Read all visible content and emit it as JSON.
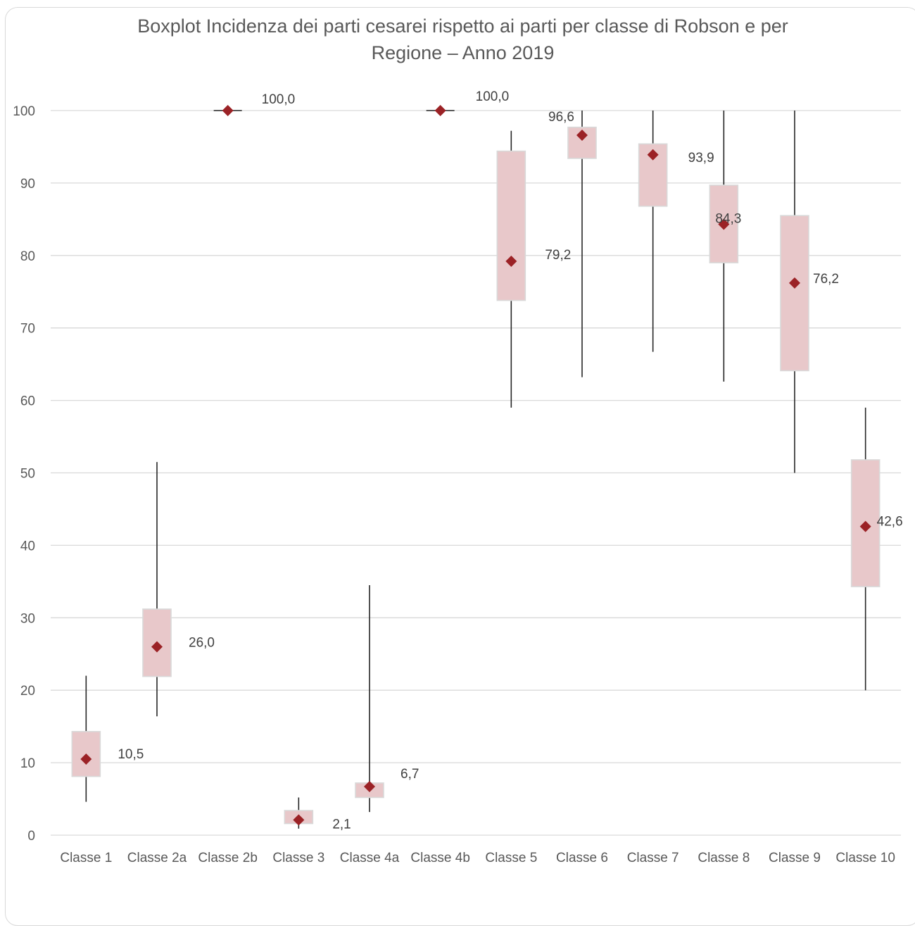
{
  "chart_data": {
    "type": "boxplot",
    "title": "Boxplot Incidenza dei parti cesarei rispetto ai parti  per classe di Robson e per Regione – Anno 2019",
    "title_lines": [
      "Boxplot Incidenza dei parti cesarei rispetto ai parti  per classe di Robson e per",
      "Regione – Anno 2019"
    ],
    "xlabel": "",
    "ylabel": "",
    "ylim": [
      0,
      100
    ],
    "yticks": [
      0,
      10,
      20,
      30,
      40,
      50,
      60,
      70,
      80,
      90,
      100
    ],
    "grid": true,
    "colors": {
      "box": "#e8c8ca",
      "box_border": "#d9d9d9",
      "whisker": "#262626",
      "marker": "#9b2226",
      "grid": "#d9d9d9",
      "text": "#595959"
    },
    "categories": [
      "Classe 1",
      "Classe 2a",
      "Classe 2b",
      "Classe 3",
      "Classe 4a",
      "Classe 4b",
      "Classe 5",
      "Classe 6",
      "Classe 7",
      "Classe 8",
      "Classe 9",
      "Classe 10"
    ],
    "boxes": [
      {
        "min": 4.6,
        "q1": 8.1,
        "q3": 14.3,
        "max": 22.0,
        "mean": 10.5,
        "label": "10,5"
      },
      {
        "min": 16.4,
        "q1": 21.9,
        "q3": 31.2,
        "max": 51.5,
        "mean": 26.0,
        "label": "26,0"
      },
      {
        "min": 99.9,
        "q1": 99.9,
        "q3": 100.0,
        "max": 100.0,
        "mean": 100.0,
        "label": "100,0"
      },
      {
        "min": 0.9,
        "q1": 1.6,
        "q3": 3.4,
        "max": 5.2,
        "mean": 2.1,
        "label": "2,1"
      },
      {
        "min": 3.2,
        "q1": 5.2,
        "q3": 7.2,
        "max": 34.5,
        "mean": 6.7,
        "label": "6,7"
      },
      {
        "min": 99.9,
        "q1": 99.9,
        "q3": 100.0,
        "max": 100.0,
        "mean": 100.0,
        "label": "100,0"
      },
      {
        "min": 59.0,
        "q1": 73.8,
        "q3": 94.4,
        "max": 97.2,
        "mean": 79.2,
        "label": "79,2"
      },
      {
        "min": 63.2,
        "q1": 93.4,
        "q3": 97.7,
        "max": 100.0,
        "mean": 96.6,
        "label": "96,6"
      },
      {
        "min": 66.7,
        "q1": 86.8,
        "q3": 95.4,
        "max": 100.0,
        "mean": 93.9,
        "label": "93,9"
      },
      {
        "min": 62.6,
        "q1": 79.0,
        "q3": 89.7,
        "max": 100.0,
        "mean": 84.3,
        "label": "84,3"
      },
      {
        "min": 50.0,
        "q1": 64.1,
        "q3": 85.5,
        "max": 100.0,
        "mean": 76.2,
        "label": "76,2"
      },
      {
        "min": 20.0,
        "q1": 34.3,
        "q3": 51.8,
        "max": 59.0,
        "mean": 42.6,
        "label": "42,6"
      }
    ]
  }
}
